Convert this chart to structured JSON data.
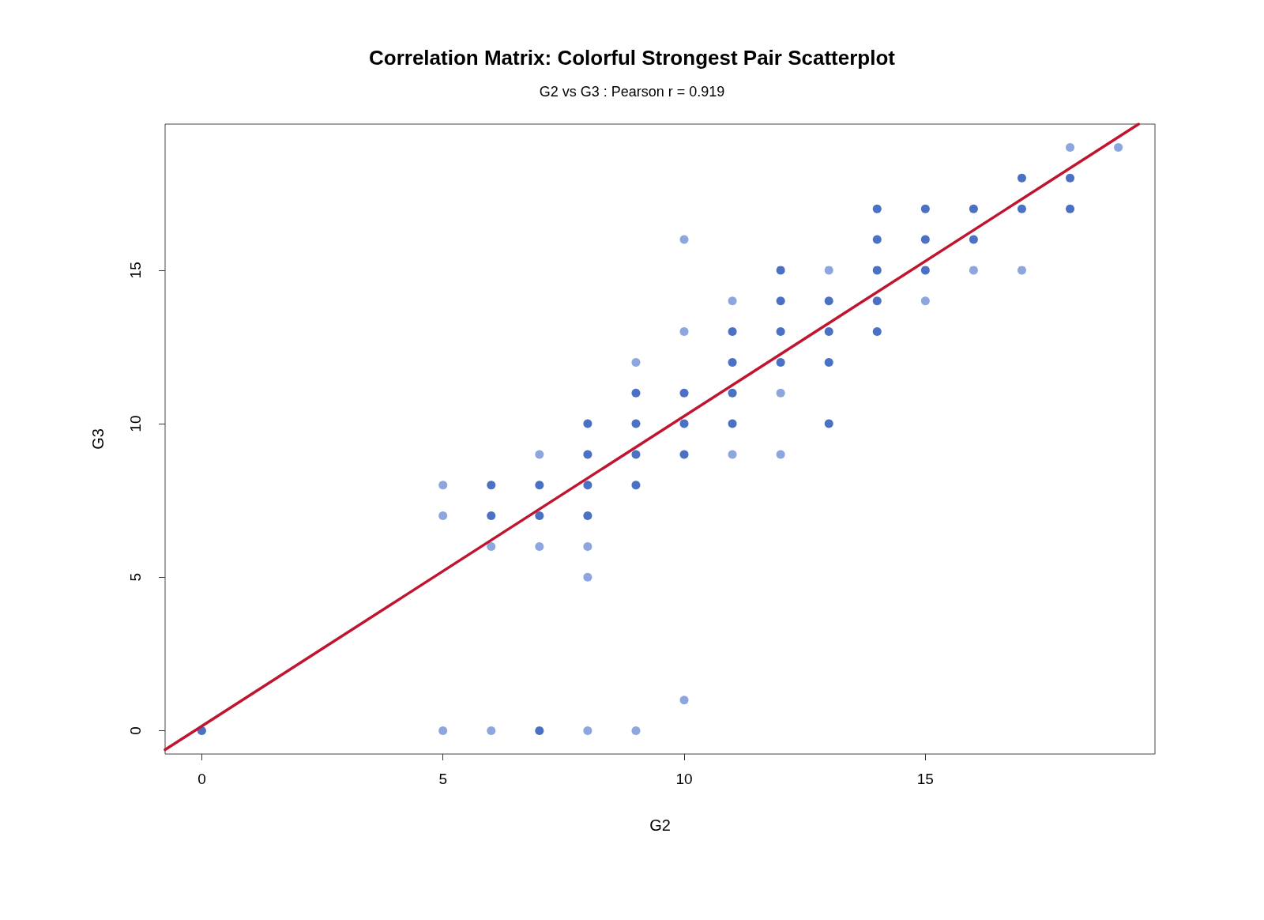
{
  "chart_data": {
    "type": "scatter",
    "title": "Correlation Matrix: Colorful Strongest Pair Scatterplot",
    "subtitle": "G2 vs G3 : Pearson r = 0.919",
    "xlabel": "G2",
    "ylabel": "G3",
    "xlim": [
      -0.76,
      19.76
    ],
    "ylim": [
      -0.76,
      19.76
    ],
    "xticks": [
      0,
      5,
      10,
      15
    ],
    "yticks": [
      0,
      5,
      10,
      15
    ],
    "grid": false,
    "series": [
      {
        "marker": "circle",
        "x": [
          0,
          5,
          6,
          7,
          8,
          9,
          10,
          5,
          5,
          6,
          6,
          6,
          7,
          7,
          7,
          7,
          8,
          8,
          8,
          8,
          8,
          8,
          9,
          9,
          9,
          9,
          9,
          10,
          10,
          10,
          10,
          10,
          11,
          11,
          11,
          11,
          11,
          11,
          12,
          12,
          12,
          12,
          12,
          12,
          13,
          13,
          13,
          13,
          13,
          14,
          14,
          14,
          14,
          14,
          15,
          15,
          15,
          15,
          16,
          16,
          16,
          17,
          17,
          17,
          18,
          18,
          18,
          19
        ],
        "values": [
          0,
          0,
          0,
          0,
          0,
          0,
          1,
          7,
          8,
          6,
          7,
          8,
          6,
          7,
          8,
          9,
          5,
          6,
          7,
          8,
          9,
          10,
          8,
          9,
          10,
          11,
          12,
          9,
          10,
          11,
          13,
          16,
          9,
          10,
          11,
          12,
          13,
          14,
          9,
          11,
          12,
          13,
          14,
          15,
          10,
          12,
          13,
          14,
          15,
          13,
          14,
          15,
          16,
          17,
          14,
          15,
          16,
          17,
          15,
          16,
          17,
          15,
          17,
          18,
          17,
          18,
          19,
          19
        ],
        "colors": [
          "#1e4db7",
          "#7190d4",
          "#7190d4",
          "#1e4db7",
          "#7190d4",
          "#7190d4",
          "#7190d4",
          "#7190d4",
          "#7190d4",
          "#7190d4",
          "#1e4db7",
          "#1e4db7",
          "#7190d4",
          "#1e4db7",
          "#1e4db7",
          "#7190d4",
          "#7190d4",
          "#7190d4",
          "#1e4db7",
          "#1e4db7",
          "#1e4db7",
          "#1e4db7",
          "#1e4db7",
          "#1e4db7",
          "#1e4db7",
          "#1e4db7",
          "#7190d4",
          "#1e4db7",
          "#1e4db7",
          "#1e4db7",
          "#7190d4",
          "#7190d4",
          "#7190d4",
          "#1e4db7",
          "#1e4db7",
          "#1e4db7",
          "#1e4db7",
          "#7190d4",
          "#7190d4",
          "#7190d4",
          "#1e4db7",
          "#1e4db7",
          "#1e4db7",
          "#1e4db7",
          "#1e4db7",
          "#1e4db7",
          "#1e4db7",
          "#1e4db7",
          "#7190d4",
          "#1e4db7",
          "#1e4db7",
          "#1e4db7",
          "#1e4db7",
          "#1e4db7",
          "#7190d4",
          "#1e4db7",
          "#1e4db7",
          "#1e4db7",
          "#7190d4",
          "#1e4db7",
          "#1e4db7",
          "#7190d4",
          "#1e4db7",
          "#1e4db7",
          "#1e4db7",
          "#1e4db7",
          "#7190d4",
          "#7190d4"
        ]
      },
      {
        "type": "line",
        "marker": "none",
        "x": [
          -0.76,
          19.42
        ],
        "values": [
          -0.62,
          19.76
        ],
        "color": "#c0152f"
      }
    ]
  }
}
